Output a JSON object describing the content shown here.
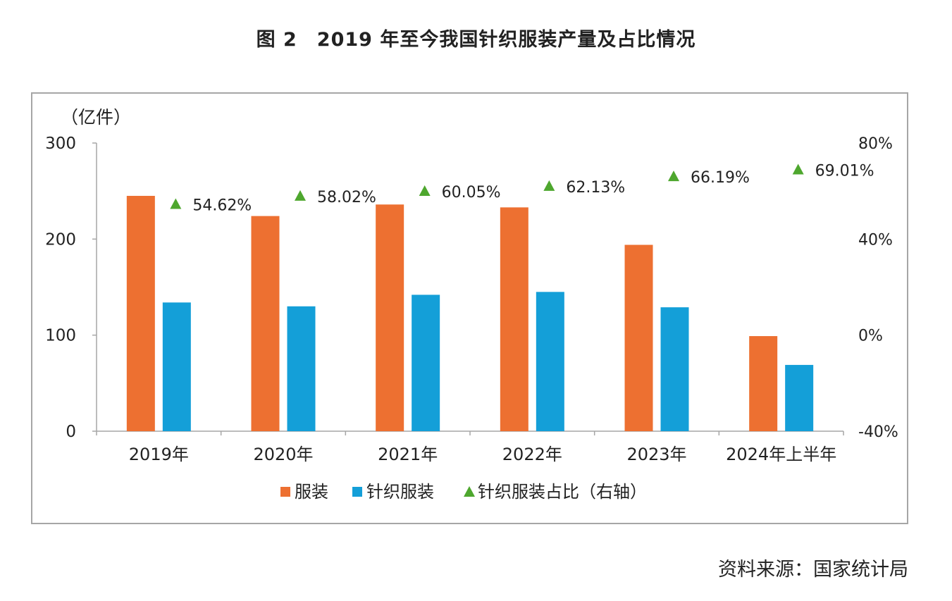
{
  "page": {
    "title": "图 2　2019 年至今我国针织服装产量及占比情况",
    "source": "资料来源：国家统计局"
  },
  "chart_data": {
    "type": "bar",
    "title": "图 2　2019 年至今我国针织服装产量及占比情况",
    "categories": [
      "2019年",
      "2020年",
      "2021年",
      "2022年",
      "2023年",
      "2024年上半年"
    ],
    "y_unit_label": "（亿件）",
    "ylim": [
      0,
      300
    ],
    "yticks": [
      "0",
      "100",
      "200",
      "300"
    ],
    "y2lim": [
      -40,
      80
    ],
    "y2ticks": [
      "-40%",
      "0%",
      "40%",
      "80%"
    ],
    "series": [
      {
        "name": "服装",
        "type": "bar",
        "axis": "left",
        "color": "#ED7031",
        "values": [
          245,
          224,
          236,
          233,
          194,
          99
        ]
      },
      {
        "name": "针织服装",
        "type": "bar",
        "axis": "left",
        "color": "#149FD8",
        "values": [
          134,
          130,
          142,
          145,
          129,
          69
        ]
      },
      {
        "name": "针织服装占比（右轴）",
        "type": "scatter",
        "axis": "right",
        "marker": "triangle",
        "color": "#4EA72E",
        "values": [
          54.62,
          58.02,
          60.05,
          62.13,
          66.19,
          69.01
        ],
        "labels": [
          "54.62%",
          "58.02%",
          "60.05%",
          "62.13%",
          "66.19%",
          "69.01%"
        ]
      }
    ],
    "legend": "bottom",
    "grid": false
  }
}
